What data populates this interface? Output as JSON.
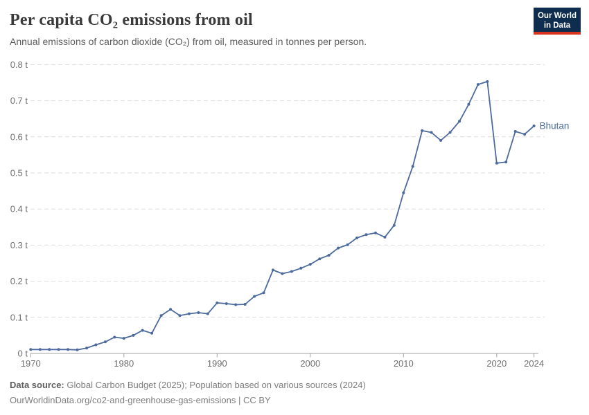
{
  "header": {
    "title": "Per capita CO₂ emissions from oil",
    "subtitle": "Annual emissions of carbon dioxide (CO₂) from oil, measured in tonnes per person.",
    "logo": {
      "line1": "Our World",
      "line2": "in Data",
      "bg_color": "#0F2E4F",
      "accent_color": "#D8341F"
    }
  },
  "chart_data": {
    "type": "line",
    "title": "Per capita CO₂ emissions from oil",
    "xlabel": "",
    "ylabel": "",
    "xlim": [
      1970,
      2024
    ],
    "ylim": [
      0,
      0.8
    ],
    "grid": "horizontal-dashed",
    "legend_position": "end-of-line-label",
    "unit": "t",
    "x_ticks": [
      {
        "value": 1970,
        "label": "1970"
      },
      {
        "value": 1980,
        "label": "1980"
      },
      {
        "value": 1990,
        "label": "1990"
      },
      {
        "value": 2000,
        "label": "2000"
      },
      {
        "value": 2010,
        "label": "2010"
      },
      {
        "value": 2020,
        "label": "2020"
      },
      {
        "value": 2024,
        "label": "2024"
      }
    ],
    "y_ticks": [
      {
        "value": 0,
        "label": "0 t"
      },
      {
        "value": 0.1,
        "label": "0.1 t"
      },
      {
        "value": 0.2,
        "label": "0.2 t"
      },
      {
        "value": 0.3,
        "label": "0.3 t"
      },
      {
        "value": 0.4,
        "label": "0.4 t"
      },
      {
        "value": 0.5,
        "label": "0.5 t"
      },
      {
        "value": 0.6,
        "label": "0.6 t"
      },
      {
        "value": 0.7,
        "label": "0.7 t"
      },
      {
        "value": 0.8,
        "label": "0.8 t"
      }
    ],
    "series": [
      {
        "name": "Bhutan",
        "color": "#4C6A9C",
        "years": [
          1970,
          1971,
          1972,
          1973,
          1974,
          1975,
          1976,
          1977,
          1978,
          1979,
          1980,
          1981,
          1982,
          1983,
          1984,
          1985,
          1986,
          1987,
          1988,
          1989,
          1990,
          1991,
          1992,
          1993,
          1994,
          1995,
          1996,
          1997,
          1998,
          1999,
          2000,
          2001,
          2002,
          2003,
          2004,
          2005,
          2006,
          2007,
          2008,
          2009,
          2010,
          2011,
          2012,
          2013,
          2014,
          2015,
          2016,
          2017,
          2018,
          2019,
          2020,
          2021,
          2022,
          2023,
          2024
        ],
        "values": [
          0.011,
          0.011,
          0.011,
          0.011,
          0.011,
          0.01,
          0.015,
          0.024,
          0.032,
          0.045,
          0.042,
          0.05,
          0.064,
          0.056,
          0.105,
          0.122,
          0.105,
          0.11,
          0.113,
          0.11,
          0.14,
          0.138,
          0.135,
          0.136,
          0.158,
          0.168,
          0.231,
          0.221,
          0.227,
          0.236,
          0.247,
          0.262,
          0.272,
          0.292,
          0.301,
          0.32,
          0.329,
          0.334,
          0.322,
          0.355,
          0.445,
          0.518,
          0.617,
          0.612,
          0.59,
          0.612,
          0.643,
          0.69,
          0.745,
          0.753,
          0.527,
          0.53,
          0.615,
          0.607,
          0.63
        ]
      }
    ]
  },
  "footer": {
    "data_source_label": "Data source:",
    "data_source_text": "Global Carbon Budget (2025); Population based on various sources (2024)",
    "credit_line": "OurWorldinData.org/co2-and-greenhouse-gas-emissions | CC BY"
  },
  "colors": {
    "grid": "#dedede",
    "axis": "#a1a1a1",
    "tick_label": "#6e6e6e"
  }
}
